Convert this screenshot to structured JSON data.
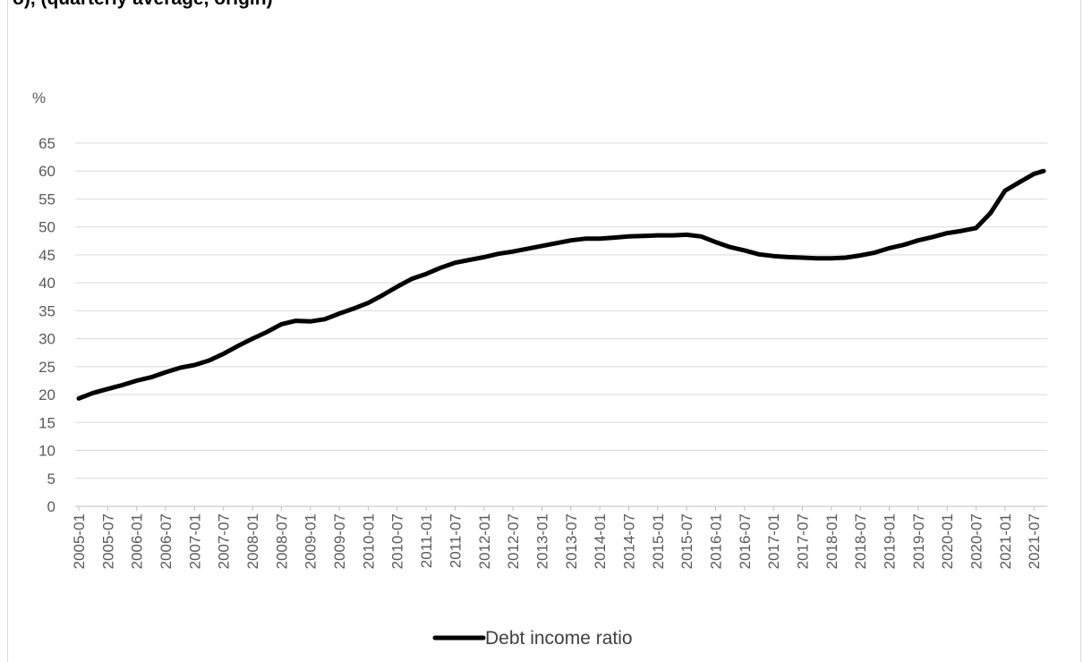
{
  "chart_data": {
    "type": "line",
    "title": "o), (quarterly average, origin)",
    "ylabel": "%",
    "ylim": [
      0,
      65
    ],
    "yticks": [
      0,
      5,
      10,
      15,
      20,
      25,
      30,
      35,
      40,
      45,
      50,
      55,
      60,
      65
    ],
    "xticks": [
      "2005-01",
      "2005-07",
      "2006-01",
      "2006-07",
      "2007-01",
      "2007-07",
      "2008-01",
      "2008-07",
      "2009-01",
      "2009-07",
      "2010-01",
      "2010-07",
      "2011-01",
      "2011-07",
      "2012-01",
      "2012-07",
      "2013-01",
      "2013-07",
      "2014-01",
      "2014-07",
      "2015-01",
      "2015-07",
      "2016-01",
      "2016-07",
      "2017-01",
      "2017-07",
      "2018-01",
      "2018-07",
      "2019-01",
      "2019-07",
      "2020-01",
      "2020-07",
      "2021-01",
      "2021-07"
    ],
    "grid": true,
    "legend_position": "bottom",
    "series": [
      {
        "name": "Debt income ratio",
        "color": "#000000",
        "points": [
          [
            "2005-01",
            19.3
          ],
          [
            "2005-04",
            20.3
          ],
          [
            "2005-07",
            21.0
          ],
          [
            "2005-10",
            21.7
          ],
          [
            "2006-01",
            22.5
          ],
          [
            "2006-04",
            23.1
          ],
          [
            "2006-07",
            24.0
          ],
          [
            "2006-10",
            24.8
          ],
          [
            "2007-01",
            25.3
          ],
          [
            "2007-04",
            26.1
          ],
          [
            "2007-07",
            27.3
          ],
          [
            "2007-10",
            28.7
          ],
          [
            "2008-01",
            30.0
          ],
          [
            "2008-04",
            31.2
          ],
          [
            "2008-07",
            32.6
          ],
          [
            "2008-10",
            33.2
          ],
          [
            "2009-01",
            33.1
          ],
          [
            "2009-04",
            33.5
          ],
          [
            "2009-07",
            34.5
          ],
          [
            "2009-10",
            35.4
          ],
          [
            "2010-01",
            36.4
          ],
          [
            "2010-04",
            37.8
          ],
          [
            "2010-07",
            39.3
          ],
          [
            "2010-10",
            40.7
          ],
          [
            "2011-01",
            41.6
          ],
          [
            "2011-04",
            42.7
          ],
          [
            "2011-07",
            43.6
          ],
          [
            "2011-10",
            44.1
          ],
          [
            "2012-01",
            44.6
          ],
          [
            "2012-04",
            45.2
          ],
          [
            "2012-07",
            45.6
          ],
          [
            "2012-10",
            46.1
          ],
          [
            "2013-01",
            46.6
          ],
          [
            "2013-04",
            47.1
          ],
          [
            "2013-07",
            47.6
          ],
          [
            "2013-10",
            47.9
          ],
          [
            "2014-01",
            47.9
          ],
          [
            "2014-04",
            48.1
          ],
          [
            "2014-07",
            48.3
          ],
          [
            "2014-10",
            48.4
          ],
          [
            "2015-01",
            48.5
          ],
          [
            "2015-04",
            48.5
          ],
          [
            "2015-07",
            48.6
          ],
          [
            "2015-10",
            48.3
          ],
          [
            "2016-01",
            47.3
          ],
          [
            "2016-04",
            46.4
          ],
          [
            "2016-07",
            45.8
          ],
          [
            "2016-10",
            45.1
          ],
          [
            "2017-01",
            44.8
          ],
          [
            "2017-04",
            44.6
          ],
          [
            "2017-07",
            44.5
          ],
          [
            "2017-10",
            44.4
          ],
          [
            "2018-01",
            44.4
          ],
          [
            "2018-04",
            44.5
          ],
          [
            "2018-07",
            44.9
          ],
          [
            "2018-10",
            45.4
          ],
          [
            "2019-01",
            46.2
          ],
          [
            "2019-04",
            46.8
          ],
          [
            "2019-07",
            47.6
          ],
          [
            "2019-10",
            48.2
          ],
          [
            "2020-01",
            48.9
          ],
          [
            "2020-04",
            49.3
          ],
          [
            "2020-07",
            49.8
          ],
          [
            "2020-10",
            52.5
          ],
          [
            "2021-01",
            56.5
          ],
          [
            "2021-04",
            58.0
          ],
          [
            "2021-07",
            59.5
          ],
          [
            "2021-09",
            60.0
          ]
        ]
      }
    ]
  }
}
